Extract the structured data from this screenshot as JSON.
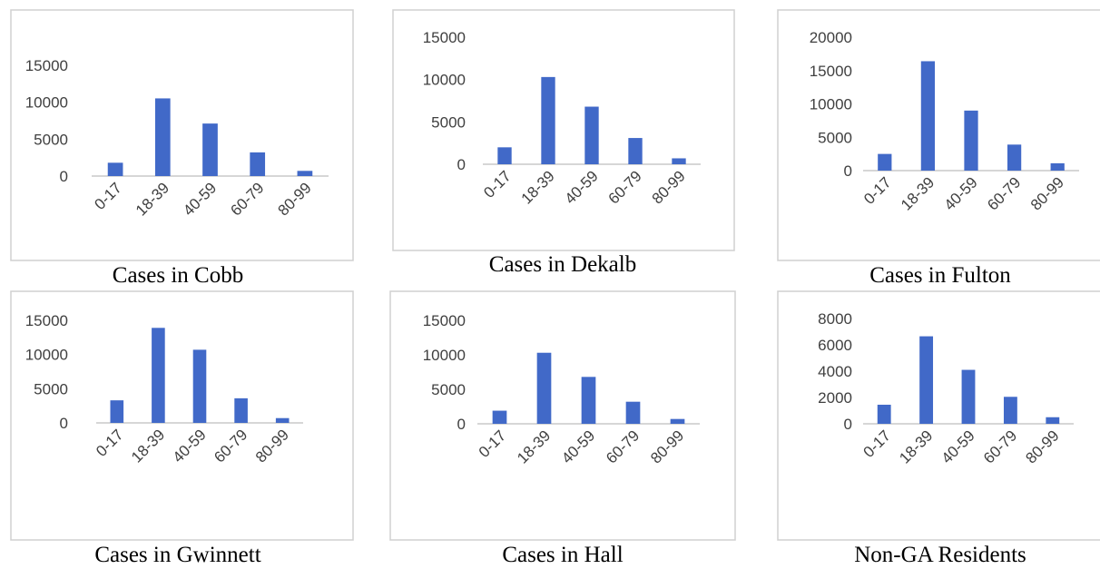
{
  "chart_data": [
    {
      "type": "bar",
      "title": "Cases in Cobb",
      "categories": [
        "0-17",
        "18-39",
        "40-59",
        "60-79",
        "80-99"
      ],
      "values": [
        1800,
        10500,
        7100,
        3200,
        700
      ],
      "yticks": [
        0,
        5000,
        10000,
        15000
      ],
      "ylim": [
        0,
        20000
      ],
      "bar_color": "#4169c8"
    },
    {
      "type": "bar",
      "title": "Cases in Dekalb",
      "categories": [
        "0-17",
        "18-39",
        "40-59",
        "60-79",
        "80-99"
      ],
      "values": [
        2000,
        10300,
        6800,
        3100,
        700
      ],
      "yticks": [
        0,
        5000,
        10000,
        15000
      ],
      "ylim": [
        0,
        15000
      ],
      "bar_color": "#4169c8"
    },
    {
      "type": "bar",
      "title": "Cases in Fulton",
      "categories": [
        "0-17",
        "18-39",
        "40-59",
        "60-79",
        "80-99"
      ],
      "values": [
        2500,
        16400,
        9000,
        3900,
        1100
      ],
      "yticks": [
        0,
        5000,
        10000,
        15000,
        20000
      ],
      "ylim": [
        0,
        20000
      ],
      "bar_color": "#4169c8"
    },
    {
      "type": "bar",
      "title": "Cases in Gwinnett",
      "categories": [
        "0-17",
        "18-39",
        "40-59",
        "60-79",
        "80-99"
      ],
      "values": [
        3300,
        13900,
        10700,
        3600,
        700
      ],
      "yticks": [
        0,
        5000,
        10000,
        15000
      ],
      "ylim": [
        0,
        15000
      ],
      "bar_color": "#4169c8"
    },
    {
      "type": "bar",
      "title": "Cases in Hall",
      "categories": [
        "0-17",
        "18-39",
        "40-59",
        "60-79",
        "80-99"
      ],
      "values": [
        1900,
        10300,
        6800,
        3200,
        700
      ],
      "yticks": [
        0,
        5000,
        10000,
        15000
      ],
      "ylim": [
        0,
        15000
      ],
      "bar_color": "#4169c8"
    },
    {
      "type": "bar",
      "title": "Non-GA Residents",
      "categories": [
        "0-17",
        "18-39",
        "40-59",
        "60-79",
        "80-99"
      ],
      "values": [
        1450,
        6650,
        4100,
        2050,
        500
      ],
      "yticks": [
        0,
        2000,
        4000,
        6000,
        8000
      ],
      "ylim": [
        0,
        8000
      ],
      "bar_color": "#4169c8"
    }
  ]
}
